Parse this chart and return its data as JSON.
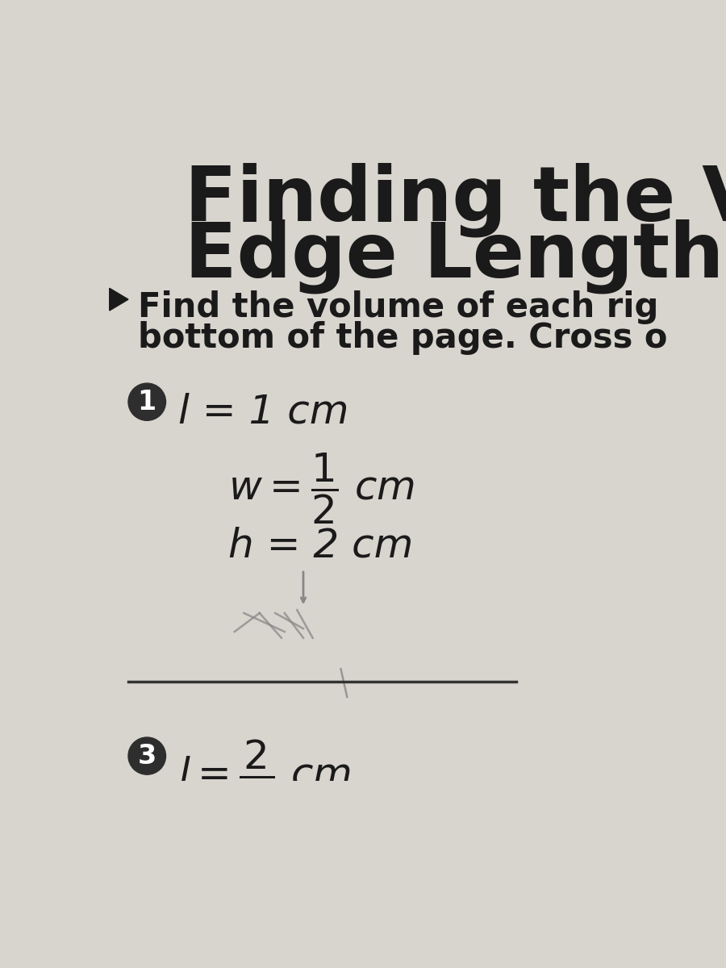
{
  "bg_color": "#d8d4ce",
  "title_line1": "Finding the Volu",
  "title_line2": "Edge Lengths",
  "title_fontsize": 68,
  "title_color": "#1a1a1a",
  "instr_line1": "Find the volume of each rig",
  "instr_line2": "bottom of the page. Cross o",
  "instr_fontsize": 30,
  "instr_color": "#1a1a1a",
  "circle1_label": "1",
  "circle_color": "#2e2e2e",
  "item1_l": "l = 1 cm",
  "item1_h": "h = 2 cm",
  "circle3_label": "3",
  "handwriting_color": "#888888",
  "divider_color": "#333333",
  "text_fontsize": 36,
  "arrow_color": "#1a1a1a"
}
